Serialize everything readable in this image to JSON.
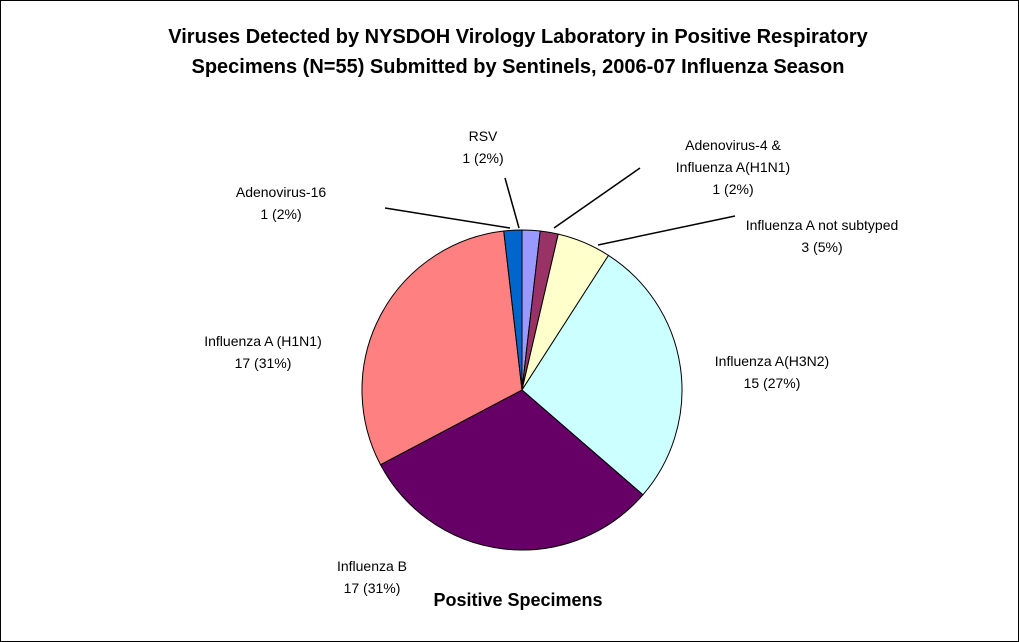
{
  "chart_data": {
    "type": "pie",
    "title": "Viruses Detected by NYSDOH Virology Laboratory in Positive Respiratory Specimens (N=55) Submitted by Sentinels, 2006-07 Influenza Season",
    "xlabel": "Positive Specimens",
    "categories": [
      "RSV",
      "Adenovirus-4 & Influenza A(H1N1)",
      "Influenza A not subtyped",
      "Influenza A(H3N2)",
      "Influenza B",
      "Influenza A (H1N1)",
      "Adenovirus-16"
    ],
    "values": [
      1,
      1,
      3,
      15,
      17,
      17,
      1
    ],
    "value_labels": [
      "1 (2%)",
      "1 (2%)",
      "3 (5%)",
      "15 (27%)",
      "17 (31%)",
      "17 (31%)",
      "1 (2%)"
    ],
    "colors": [
      "#9999ff",
      "#993366",
      "#ffffcc",
      "#ccffff",
      "#660066",
      "#ff8080",
      "#0066cc"
    ]
  }
}
